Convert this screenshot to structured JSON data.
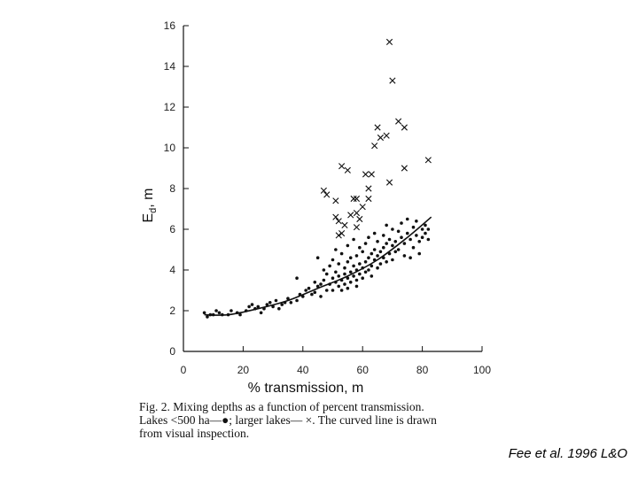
{
  "chart_data": {
    "type": "scatter",
    "xlabel": "% transmission, m",
    "ylabel": "E",
    "ylabel_sub": "d",
    "ylabel_suffix": ", m",
    "xlim": [
      0,
      100
    ],
    "ylim": [
      0,
      16
    ],
    "xticks": [
      0,
      20,
      40,
      60,
      80,
      100
    ],
    "yticks": [
      0,
      2,
      4,
      6,
      8,
      10,
      12,
      14,
      16
    ],
    "grid": false,
    "series": [
      {
        "name": "",
        "marker": "dot",
        "points": [
          [
            7,
            1.9
          ],
          [
            8,
            1.7
          ],
          [
            9,
            1.8
          ],
          [
            10,
            1.8
          ],
          [
            11,
            2.0
          ],
          [
            12,
            1.9
          ],
          [
            13,
            1.8
          ],
          [
            15,
            1.8
          ],
          [
            16,
            2.0
          ],
          [
            18,
            1.9
          ],
          [
            19,
            1.8
          ],
          [
            21,
            2.0
          ],
          [
            22,
            2.2
          ],
          [
            23,
            2.3
          ],
          [
            24,
            2.1
          ],
          [
            25,
            2.2
          ],
          [
            26,
            1.9
          ],
          [
            27,
            2.1
          ],
          [
            28,
            2.3
          ],
          [
            29,
            2.4
          ],
          [
            30,
            2.2
          ],
          [
            31,
            2.5
          ],
          [
            32,
            2.1
          ],
          [
            33,
            2.3
          ],
          [
            34,
            2.4
          ],
          [
            35,
            2.6
          ],
          [
            36,
            2.4
          ],
          [
            38,
            3.6
          ],
          [
            38,
            2.5
          ],
          [
            39,
            2.8
          ],
          [
            40,
            2.7
          ],
          [
            41,
            3.0
          ],
          [
            42,
            3.1
          ],
          [
            43,
            2.8
          ],
          [
            44,
            3.4
          ],
          [
            44,
            2.9
          ],
          [
            45,
            4.6
          ],
          [
            45,
            3.2
          ],
          [
            46,
            3.3
          ],
          [
            46,
            2.7
          ],
          [
            47,
            3.5
          ],
          [
            47,
            4.0
          ],
          [
            48,
            3.0
          ],
          [
            48,
            3.8
          ],
          [
            49,
            3.3
          ],
          [
            49,
            4.2
          ],
          [
            50,
            3.6
          ],
          [
            50,
            3.0
          ],
          [
            50,
            4.5
          ],
          [
            51,
            3.4
          ],
          [
            51,
            3.9
          ],
          [
            51,
            5.0
          ],
          [
            52,
            3.2
          ],
          [
            52,
            3.7
          ],
          [
            52,
            4.3
          ],
          [
            53,
            3.0
          ],
          [
            53,
            3.5
          ],
          [
            53,
            4.8
          ],
          [
            54,
            3.8
          ],
          [
            54,
            3.3
          ],
          [
            54,
            4.1
          ],
          [
            55,
            3.6
          ],
          [
            55,
            4.4
          ],
          [
            55,
            5.2
          ],
          [
            55,
            3.1
          ],
          [
            56,
            3.9
          ],
          [
            56,
            3.4
          ],
          [
            56,
            4.6
          ],
          [
            57,
            3.7
          ],
          [
            57,
            4.2
          ],
          [
            57,
            5.5
          ],
          [
            58,
            3.5
          ],
          [
            58,
            4.0
          ],
          [
            58,
            4.7
          ],
          [
            58,
            3.2
          ],
          [
            59,
            4.3
          ],
          [
            59,
            3.8
          ],
          [
            59,
            5.1
          ],
          [
            60,
            4.1
          ],
          [
            60,
            3.6
          ],
          [
            60,
            4.9
          ],
          [
            61,
            4.4
          ],
          [
            61,
            3.9
          ],
          [
            61,
            5.3
          ],
          [
            62,
            4.6
          ],
          [
            62,
            4.0
          ],
          [
            62,
            5.6
          ],
          [
            63,
            4.2
          ],
          [
            63,
            4.8
          ],
          [
            63,
            3.7
          ],
          [
            64,
            4.5
          ],
          [
            64,
            5.0
          ],
          [
            64,
            5.8
          ],
          [
            65,
            4.7
          ],
          [
            65,
            4.1
          ],
          [
            65,
            5.4
          ],
          [
            66,
            4.9
          ],
          [
            66,
            4.3
          ],
          [
            67,
            5.1
          ],
          [
            67,
            4.6
          ],
          [
            67,
            5.7
          ],
          [
            68,
            5.3
          ],
          [
            68,
            4.4
          ],
          [
            68,
            6.2
          ],
          [
            69,
            5.5
          ],
          [
            69,
            4.8
          ],
          [
            70,
            5.2
          ],
          [
            70,
            6.0
          ],
          [
            70,
            4.5
          ],
          [
            71,
            5.4
          ],
          [
            71,
            4.9
          ],
          [
            72,
            5.9
          ],
          [
            72,
            5.0
          ],
          [
            73,
            5.6
          ],
          [
            73,
            6.3
          ],
          [
            74,
            5.3
          ],
          [
            74,
            4.7
          ],
          [
            75,
            5.8
          ],
          [
            75,
            6.5
          ],
          [
            76,
            5.5
          ],
          [
            76,
            4.6
          ],
          [
            77,
            6.1
          ],
          [
            77,
            5.1
          ],
          [
            78,
            5.7
          ],
          [
            78,
            6.4
          ],
          [
            79,
            5.4
          ],
          [
            79,
            4.8
          ],
          [
            80,
            6.0
          ],
          [
            80,
            5.6
          ],
          [
            81,
            6.2
          ],
          [
            81,
            5.8
          ],
          [
            82,
            6.0
          ],
          [
            82,
            5.5
          ]
        ]
      },
      {
        "name": "",
        "marker": "x",
        "points": [
          [
            69,
            15.2
          ],
          [
            70,
            13.3
          ],
          [
            72,
            11.3
          ],
          [
            74,
            11.0
          ],
          [
            65,
            11.0
          ],
          [
            66,
            10.5
          ],
          [
            68,
            10.6
          ],
          [
            64,
            10.1
          ],
          [
            53,
            9.1
          ],
          [
            55,
            8.9
          ],
          [
            74,
            9.0
          ],
          [
            82,
            9.4
          ],
          [
            61,
            8.7
          ],
          [
            63,
            8.7
          ],
          [
            69,
            8.3
          ],
          [
            62,
            8.0
          ],
          [
            47,
            7.9
          ],
          [
            48,
            7.7
          ],
          [
            51,
            7.4
          ],
          [
            57,
            7.5
          ],
          [
            58,
            7.5
          ],
          [
            62,
            7.5
          ],
          [
            60,
            7.1
          ],
          [
            56,
            6.7
          ],
          [
            58,
            6.8
          ],
          [
            59,
            6.5
          ],
          [
            51,
            6.6
          ],
          [
            52,
            6.4
          ],
          [
            54,
            6.2
          ],
          [
            58,
            6.1
          ],
          [
            53,
            5.8
          ],
          [
            52,
            5.7
          ]
        ]
      }
    ],
    "fitted_curve": [
      [
        7,
        1.8
      ],
      [
        15,
        1.8
      ],
      [
        25,
        2.1
      ],
      [
        35,
        2.5
      ],
      [
        45,
        3.1
      ],
      [
        55,
        3.7
      ],
      [
        65,
        4.5
      ],
      [
        75,
        5.6
      ],
      [
        83,
        6.6
      ]
    ],
    "fitted_curve_label": ""
  },
  "caption": {
    "line1": "Fig. 2.   Mixing depths as a function of percent transmission.",
    "line2": "Lakes <500 ha—●; larger lakes— ×.  The curved line is drawn",
    "line3": "from visual inspection."
  },
  "citation": "Fee et al. 1996 L&O",
  "colors": {
    "ink": "#111111",
    "background": "#ffffff"
  }
}
